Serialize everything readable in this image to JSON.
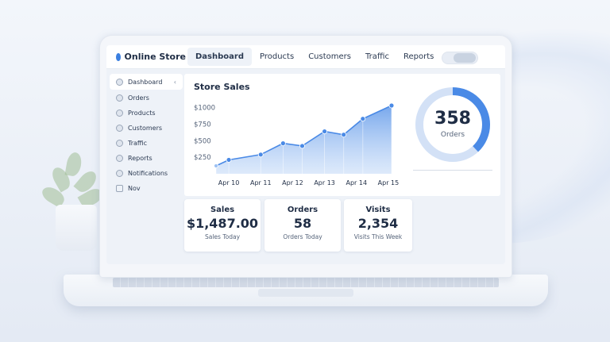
{
  "app": {
    "title": "Online Store"
  },
  "nav": [
    {
      "label": "Dashboard",
      "active": true
    },
    {
      "label": "Products"
    },
    {
      "label": "Customers"
    },
    {
      "label": "Traffic"
    },
    {
      "label": "Reports"
    }
  ],
  "sidebar": {
    "items": [
      {
        "label": "Dashboard",
        "icon": "dashboard-icon",
        "active": true,
        "chevron": "‹"
      },
      {
        "label": "Orders",
        "icon": "orders-icon"
      },
      {
        "label": "Products",
        "icon": "products-icon"
      },
      {
        "label": "Customers",
        "icon": "customers-icon"
      },
      {
        "label": "Traffic",
        "icon": "traffic-icon"
      },
      {
        "label": "Reports",
        "icon": "reports-icon"
      },
      {
        "label": "Notifications",
        "icon": "notifications-icon"
      },
      {
        "label": "Nov",
        "icon": "calendar-icon"
      }
    ]
  },
  "chart_card": {
    "title": "Store Sales"
  },
  "chart_data": {
    "type": "area",
    "title": "Store Sales",
    "ylim": [
      0,
      1200
    ],
    "y_ticks": [
      "$1000",
      "$750",
      "$500",
      "$250"
    ],
    "y_tick_values": [
      1000,
      750,
      500,
      250
    ],
    "x_tick_labels": [
      "Apr 10",
      "Apr 11",
      "Apr 12",
      "Apr 13",
      "Apr 14",
      "Apr 15"
    ],
    "x": [
      9.6,
      10,
      11,
      11.7,
      12.3,
      13,
      13.6,
      14.2,
      15.1
    ],
    "values": [
      120,
      210,
      290,
      460,
      420,
      640,
      590,
      830,
      1030
    ],
    "color": "#4a8ae6",
    "grid": "vertical"
  },
  "orders_donut": {
    "value": "358",
    "label": "Orders",
    "fraction": 0.38,
    "color": "#4a8ae6",
    "track_color": "#d3e1f6"
  },
  "stats": [
    {
      "title": "Sales",
      "value": "$1,487.00",
      "sub": "Sales Today"
    },
    {
      "title": "Orders",
      "value": "58",
      "sub": "Orders Today"
    },
    {
      "title": "Visits",
      "value": "2,354",
      "sub": "Visits This Week"
    }
  ],
  "colors": {
    "accent": "#3b7fe0",
    "text": "#1f2d45"
  }
}
